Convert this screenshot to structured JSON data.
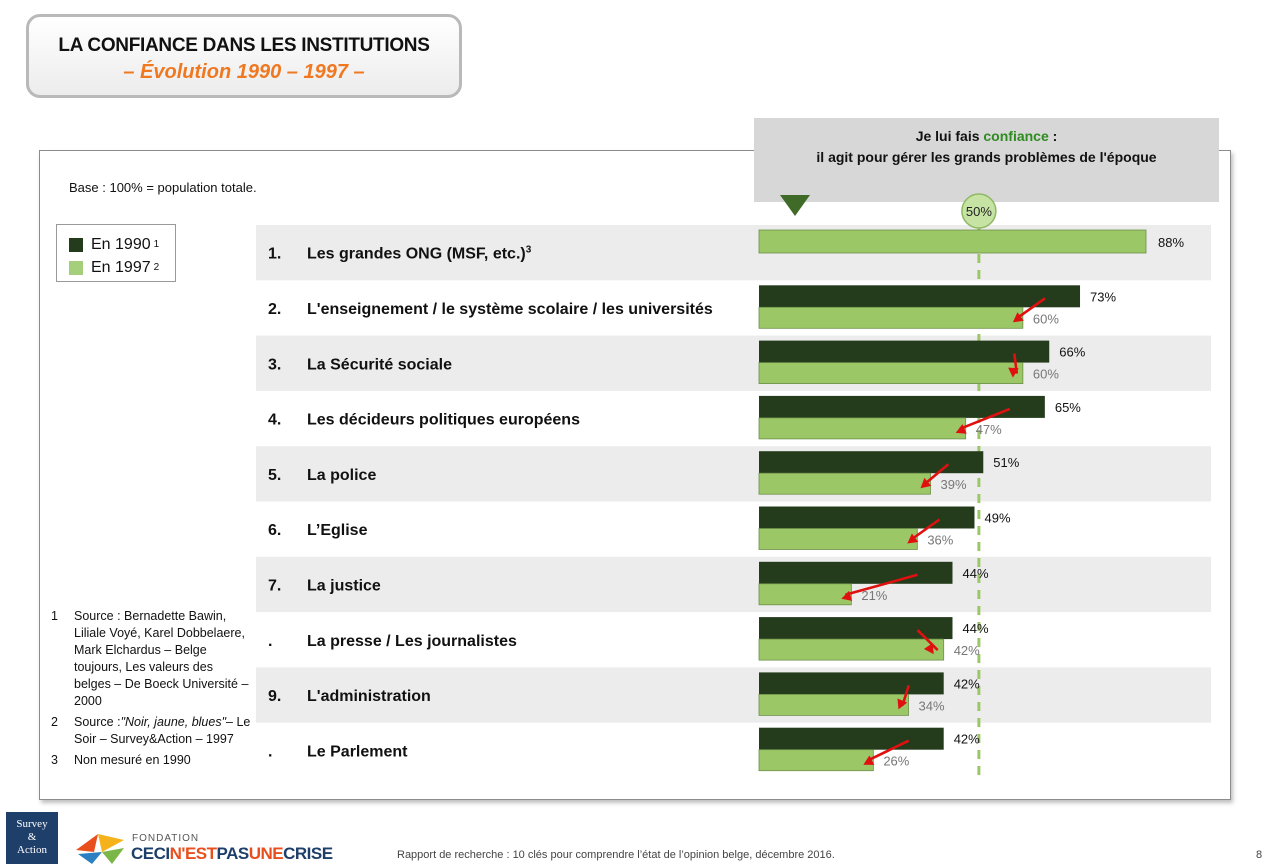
{
  "title": {
    "line1": "LA CONFIANCE DANS LES INSTITUTIONS",
    "line2": "– Évolution 1990 – 1997 –"
  },
  "question": {
    "before": "Je lui fais ",
    "highlight": "confiance",
    "after": " :",
    "line2": "il agit pour gérer les grands problèmes de l'époque"
  },
  "base": "Base : 100% = population totale.",
  "legend": {
    "items": [
      {
        "label": "En 1990",
        "sup": "1",
        "color": "#243c1c"
      },
      {
        "label": "En 1997",
        "sup": "2",
        "color": "#a6cf7c"
      }
    ]
  },
  "notes": [
    {
      "num": "1",
      "text": "Source : Bernadette Bawin, Liliale Voyé, Karel Dobbelaere, Mark Elchardus – Belge toujours, Les valeurs des belges – De Boeck Université – 2000"
    },
    {
      "num": "2",
      "text_before": "Source :",
      "text_italic": "\"Noir, jaune, blues\"",
      "text_after": "– Le Soir – Survey&Action – 1997"
    },
    {
      "num": "3",
      "text": "Non mesuré en 1990"
    }
  ],
  "footer": "Rapport de recherche : 10 clés pour comprendre l’état de l’opinion belge, décembre 2016.",
  "page_number": "8",
  "logos": {
    "survey_action": [
      "Survey",
      "&",
      "Action"
    ],
    "fondation": "FONDATION",
    "ceci_part1": "CECI",
    "ceci_part2": "N'EST",
    "ceci_part3": "PAS",
    "ceci_part4": "UNE",
    "ceci_part5": "CRISE"
  },
  "chart_data": {
    "type": "bar",
    "orientation": "horizontal",
    "reference_line": {
      "value": 50,
      "label": "50%"
    },
    "xlim": [
      0,
      88
    ],
    "categories": [
      {
        "num": "1.",
        "label": "Les grandes ONG (MSF, etc.)",
        "sup": "3"
      },
      {
        "num": "2.",
        "label": "L'enseignement / le système scolaire / les universités",
        "sup": ""
      },
      {
        "num": "3.",
        "label": "La Sécurité sociale",
        "sup": ""
      },
      {
        "num": "4.",
        "label": "Les décideurs politiques européens",
        "sup": ""
      },
      {
        "num": "5.",
        "label": "La police",
        "sup": ""
      },
      {
        "num": "6.",
        "label": "L’Eglise",
        "sup": ""
      },
      {
        "num": "7.",
        "label": "La justice",
        "sup": ""
      },
      {
        "num": ".",
        "label": "La presse / Les journalistes",
        "sup": ""
      },
      {
        "num": "9.",
        "label": "L'administration",
        "sup": ""
      },
      {
        "num": ".",
        "label": "Le Parlement",
        "sup": ""
      }
    ],
    "series": [
      {
        "name": "En 1990",
        "color": "#243c1c",
        "values": [
          null,
          73,
          66,
          65,
          51,
          49,
          44,
          44,
          42,
          42
        ]
      },
      {
        "name": "En 1997",
        "color": "#9cc766",
        "values": [
          88,
          60,
          60,
          47,
          39,
          36,
          21,
          42,
          34,
          26
        ]
      }
    ],
    "value_labels_1990": [
      null,
      "73%",
      "66%",
      "65%",
      "51%",
      "49%",
      "44%",
      "44%",
      "42%",
      "42%"
    ],
    "value_labels_1997": [
      "88%",
      "60%",
      "60%",
      "47%",
      "39%",
      "36%",
      "21%",
      "42%",
      "34%",
      "26%"
    ]
  }
}
